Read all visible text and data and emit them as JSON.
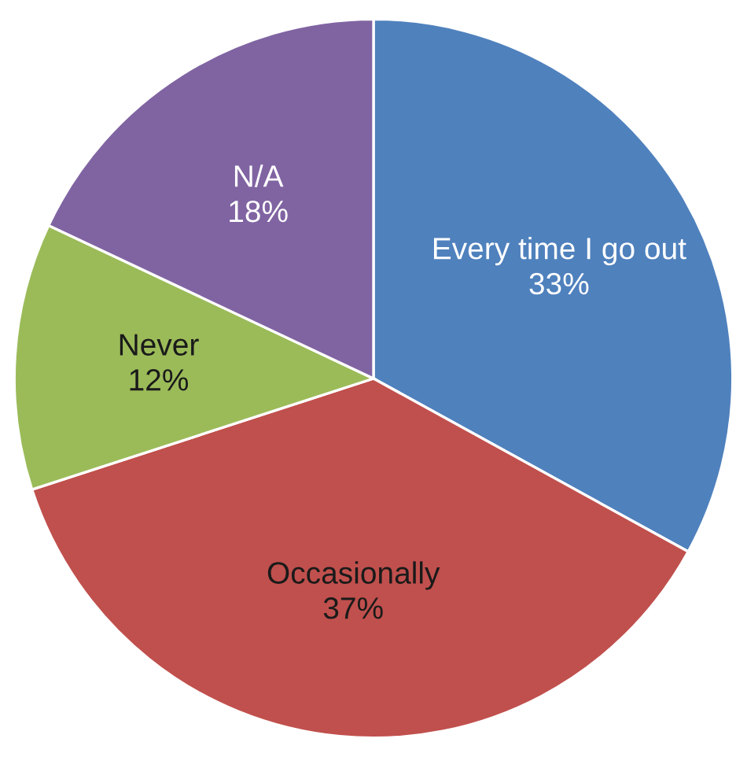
{
  "chart_data": {
    "type": "pie",
    "categories": [
      "Every time I go out",
      "Occasionally",
      "Never",
      "N/A"
    ],
    "values": [
      33,
      37,
      12,
      18
    ],
    "colors": [
      "#4f81bd",
      "#c0504d",
      "#9bbb59",
      "#8064a2"
    ],
    "value_labels": [
      "33%",
      "37%",
      "12%",
      "18%"
    ],
    "legend": false
  }
}
